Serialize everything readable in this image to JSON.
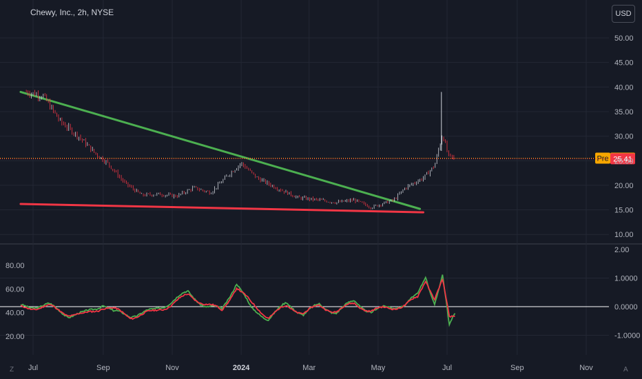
{
  "title": "Chewy, Inc., 2h, NYSE",
  "currency_button": "USD",
  "corner_left": "Z",
  "corner_right": "A",
  "colors": {
    "background": "#161a25",
    "grid": "#232734",
    "up": "#d1d4dc",
    "down": "#f23645",
    "trend_upper": "#4caf50",
    "trend_lower": "#f23645",
    "osc_fast": "#4caf50",
    "osc_slow": "#f23645",
    "pre_badge": "#f7a600",
    "last_badge": "#f23645"
  },
  "chart_data": [
    {
      "type": "candlestick",
      "title": "Chewy, Inc., 2h, NYSE",
      "x_tick_labels": [
        "Jul",
        "Sep",
        "Nov",
        "2024",
        "Mar",
        "May",
        "Jul",
        "Sep",
        "Nov"
      ],
      "x_range": [
        "2023-06",
        "2024-12"
      ],
      "y_axis": {
        "ticks": [
          "10.00",
          "15.00",
          "20.00",
          "25.00",
          "30.00",
          "35.00",
          "40.00",
          "45.00",
          "50.00"
        ],
        "ylim": [
          7.5,
          52.5
        ]
      },
      "price_anchors": [
        [
          "2023-06-25",
          39.0
        ],
        [
          "2023-07-10",
          38.2
        ],
        [
          "2023-07-25",
          33.0
        ],
        [
          "2023-08-10",
          30.0
        ],
        [
          "2023-08-25",
          26.5
        ],
        [
          "2023-09-05",
          24.5
        ],
        [
          "2023-09-20",
          20.5
        ],
        [
          "2023-10-05",
          18.0
        ],
        [
          "2023-10-20",
          18.2
        ],
        [
          "2023-11-05",
          17.8
        ],
        [
          "2023-11-20",
          19.5
        ],
        [
          "2023-12-05",
          18.5
        ],
        [
          "2023-12-20",
          22.0
        ],
        [
          "2024-01-01",
          24.5
        ],
        [
          "2024-01-15",
          21.5
        ],
        [
          "2024-02-01",
          19.5
        ],
        [
          "2024-02-20",
          17.5
        ],
        [
          "2024-03-10",
          17.0
        ],
        [
          "2024-03-25",
          16.5
        ],
        [
          "2024-04-10",
          17.0
        ],
        [
          "2024-04-25",
          15.5
        ],
        [
          "2024-05-05",
          16.3
        ],
        [
          "2024-05-15",
          17.0
        ],
        [
          "2024-05-25",
          19.5
        ],
        [
          "2024-06-10",
          21.5
        ],
        [
          "2024-06-20",
          24.0
        ],
        [
          "2024-06-27",
          30.5
        ],
        [
          "2024-07-02",
          26.0
        ],
        [
          "2024-07-08",
          25.4
        ]
      ],
      "spike": {
        "date": "2024-06-26",
        "high": 39.0
      },
      "trendlines": [
        {
          "color": "green",
          "from": [
            "2023-06-20",
            39.0
          ],
          "to": [
            "2024-06-07",
            15.2
          ]
        },
        {
          "color": "red",
          "from": [
            "2023-06-20",
            16.2
          ],
          "to": [
            "2024-06-10",
            14.5
          ]
        }
      ],
      "price_labels": [
        {
          "label": "Pre",
          "value": 25.52
        },
        {
          "label": "",
          "value": 25.41
        }
      ]
    },
    {
      "type": "line",
      "y_axis_left": {
        "ticks": [
          "20.00",
          "40.00",
          "60.00",
          "80.00"
        ]
      },
      "y_axis_right": {
        "ticks": [
          "2.00",
          "1.0000",
          "0.0000",
          "-1.0000"
        ],
        "ylim": [
          -1.75,
          2.0
        ]
      },
      "zero_line": 0.0,
      "series": [
        {
          "color": "green",
          "values": [
            [
              "2023-06-20",
              0.0
            ],
            [
              "2023-07-15",
              0.05
            ],
            [
              "2023-08-01",
              -0.3
            ],
            [
              "2023-08-15",
              -0.25
            ],
            [
              "2023-09-01",
              0.1
            ],
            [
              "2023-09-10",
              -0.2
            ],
            [
              "2023-09-25",
              -0.3
            ],
            [
              "2023-10-15",
              -0.15
            ],
            [
              "2023-11-01",
              0.2
            ],
            [
              "2023-11-15",
              0.5
            ],
            [
              "2023-12-01",
              0.0
            ],
            [
              "2023-12-15",
              -0.1
            ],
            [
              "2023-12-28",
              0.85
            ],
            [
              "2024-01-10",
              -0.1
            ],
            [
              "2024-01-25",
              -0.4
            ],
            [
              "2024-02-10",
              0.1
            ],
            [
              "2024-02-25",
              -0.25
            ],
            [
              "2024-03-10",
              0.05
            ],
            [
              "2024-03-25",
              -0.2
            ],
            [
              "2024-04-10",
              0.2
            ],
            [
              "2024-04-25",
              -0.2
            ],
            [
              "2024-05-10",
              0.0
            ],
            [
              "2024-05-25",
              0.05
            ],
            [
              "2024-06-05",
              0.4
            ],
            [
              "2024-06-12",
              1.1
            ],
            [
              "2024-06-20",
              0.1
            ],
            [
              "2024-06-27",
              1.05
            ],
            [
              "2024-07-03",
              -0.7
            ],
            [
              "2024-07-08",
              -0.2
            ]
          ]
        },
        {
          "color": "red",
          "values": [
            [
              "2023-06-20",
              -0.05
            ],
            [
              "2023-07-15",
              0.0
            ],
            [
              "2023-08-01",
              -0.25
            ],
            [
              "2023-08-15",
              -0.3
            ],
            [
              "2023-09-01",
              0.0
            ],
            [
              "2023-09-10",
              -0.1
            ],
            [
              "2023-09-25",
              -0.35
            ],
            [
              "2023-10-15",
              -0.2
            ],
            [
              "2023-11-01",
              0.1
            ],
            [
              "2023-11-15",
              0.4
            ],
            [
              "2023-12-01",
              0.1
            ],
            [
              "2023-12-15",
              -0.15
            ],
            [
              "2023-12-28",
              0.7
            ],
            [
              "2024-01-10",
              0.1
            ],
            [
              "2024-01-25",
              -0.35
            ],
            [
              "2024-02-10",
              0.0
            ],
            [
              "2024-02-25",
              -0.2
            ],
            [
              "2024-03-10",
              0.0
            ],
            [
              "2024-03-25",
              -0.15
            ],
            [
              "2024-04-10",
              0.1
            ],
            [
              "2024-04-25",
              -0.15
            ],
            [
              "2024-05-10",
              -0.05
            ],
            [
              "2024-05-25",
              0.05
            ],
            [
              "2024-06-05",
              0.3
            ],
            [
              "2024-06-12",
              0.95
            ],
            [
              "2024-06-20",
              0.3
            ],
            [
              "2024-06-27",
              0.9
            ],
            [
              "2024-07-03",
              -0.4
            ],
            [
              "2024-07-08",
              -0.35
            ]
          ]
        }
      ]
    }
  ]
}
